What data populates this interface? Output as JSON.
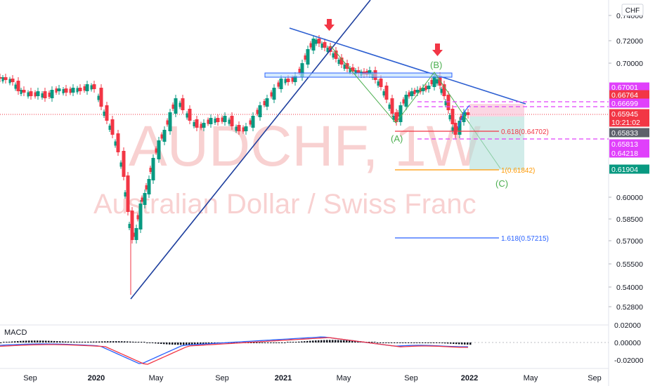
{
  "chart_data": {
    "type": "candlestick",
    "symbol": "AUDCHF, 1W",
    "description": "Australian Dollar / Swiss Franc",
    "currency": "CHF",
    "y_ticks": [
      "0.74000",
      "0.72000",
      "0.70000",
      "0.60000",
      "0.58500",
      "0.57000",
      "0.55500",
      "0.54000",
      "0.52800"
    ],
    "x_ticks": [
      {
        "label": "Sep",
        "bold": false
      },
      {
        "label": "2020",
        "bold": true
      },
      {
        "label": "May",
        "bold": false
      },
      {
        "label": "Sep",
        "bold": false
      },
      {
        "label": "2021",
        "bold": true
      },
      {
        "label": "May",
        "bold": false
      },
      {
        "label": "Sep",
        "bold": false
      },
      {
        "label": "2022",
        "bold": true
      },
      {
        "label": "May",
        "bold": false
      },
      {
        "label": "Sep",
        "bold": false
      }
    ],
    "price_badges": [
      {
        "text": "0.67001",
        "color": "#e040fb",
        "price": 0.67001
      },
      {
        "text": "0.66764",
        "color": "#f23645",
        "price": 0.66764
      },
      {
        "text": "0.66699",
        "color": "#e040fb",
        "price": 0.66699
      },
      {
        "text": "0.65945",
        "color": "#f23645",
        "price": 0.65945
      },
      {
        "text": "10:21:02",
        "color": "#f23645",
        "price": 0.65945
      },
      {
        "text": "0.65833",
        "color": "#5d606b",
        "price": 0.65833
      },
      {
        "text": "0.65813",
        "color": "#e040fb",
        "price": 0.65813
      },
      {
        "text": "0.64218",
        "color": "#e040fb",
        "price": 0.64218
      },
      {
        "text": "0.61904",
        "color": "#089981",
        "price": 0.61904
      }
    ],
    "wave_labels": [
      "(A)",
      "(B)",
      "(C)"
    ],
    "fib_levels": [
      {
        "label": "0.618(0.64702)",
        "price": 0.64702,
        "color": "#f23645"
      },
      {
        "label": "1(0.61842)",
        "price": 0.61842,
        "color": "#ff9800"
      },
      {
        "label": "1.618(0.57215)",
        "price": 0.57215,
        "color": "#2962ff"
      }
    ],
    "indicator": {
      "name": "MACD",
      "y_ticks": [
        "0.02000",
        "0.00000",
        "-0.02000"
      ]
    },
    "colors": {
      "up": "#089981",
      "down": "#f23645",
      "trendline": "#1e3f9e",
      "wave": "#4caf50"
    }
  }
}
